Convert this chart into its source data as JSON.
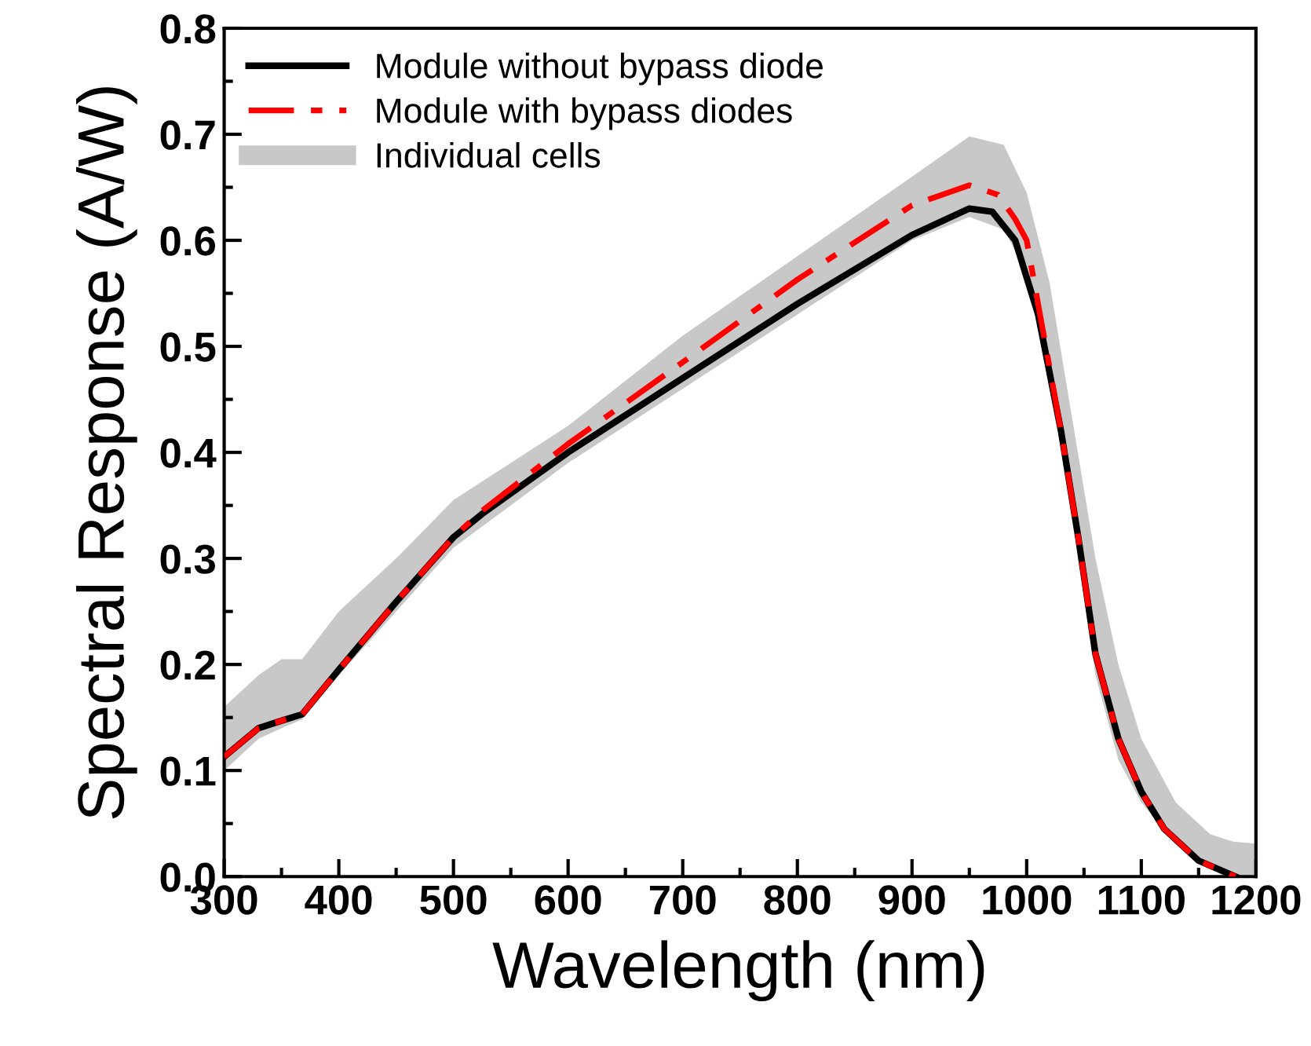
{
  "chart_data": {
    "type": "line",
    "xlabel": "Wavelength (nm)",
    "ylabel": "Spectral Response (A/W)",
    "xlim": [
      300,
      1200
    ],
    "xticks": [
      300,
      400,
      500,
      600,
      700,
      800,
      900,
      1000,
      1100,
      1200
    ],
    "ylim": [
      0.0,
      0.8
    ],
    "yticks": [
      {
        "value": 0.0,
        "label": "0.0"
      },
      {
        "value": 0.1,
        "label": "0.1"
      },
      {
        "value": 0.2,
        "label": "0.2"
      },
      {
        "value": 0.3,
        "label": "0.3"
      },
      {
        "value": 0.4,
        "label": "0.4"
      },
      {
        "value": 0.5,
        "label": "0.5"
      },
      {
        "value": 0.6,
        "label": "0.6"
      },
      {
        "value": 0.7,
        "label": "0.7"
      },
      {
        "value": 0.8,
        "label": "0.8"
      }
    ],
    "legend": "top left",
    "grid": false,
    "marker": "none",
    "series": [
      {
        "name": "Module without bypass diode",
        "color": "#000000",
        "line_style": "solid",
        "x": [
          300,
          330,
          350,
          368,
          400,
          450,
          500,
          525,
          600,
          700,
          800,
          900,
          950,
          970,
          990,
          1010,
          1030,
          1045,
          1060,
          1080,
          1100,
          1120,
          1150,
          1182
        ],
        "values": [
          0.113,
          0.14,
          0.147,
          0.153,
          0.195,
          0.259,
          0.32,
          0.342,
          0.4,
          0.47,
          0.54,
          0.605,
          0.63,
          0.627,
          0.6,
          0.53,
          0.42,
          0.32,
          0.21,
          0.13,
          0.08,
          0.045,
          0.015,
          0.0
        ]
      },
      {
        "name": "Module with bypass diodes",
        "color": "#ff0000",
        "line_style": "dashdot",
        "x": [
          300,
          330,
          350,
          368,
          400,
          450,
          500,
          525,
          600,
          700,
          800,
          900,
          950,
          975,
          990,
          1000,
          1010,
          1030,
          1045,
          1060,
          1080,
          1100,
          1120,
          1150,
          1182
        ],
        "values": [
          0.113,
          0.14,
          0.147,
          0.153,
          0.195,
          0.259,
          0.32,
          0.345,
          0.408,
          0.485,
          0.563,
          0.633,
          0.652,
          0.643,
          0.62,
          0.6,
          0.54,
          0.42,
          0.32,
          0.21,
          0.13,
          0.08,
          0.045,
          0.015,
          0.0
        ]
      },
      {
        "name": "Individual cells",
        "type": "area",
        "color": "#c8c8c8",
        "x": [
          300,
          330,
          350,
          368,
          400,
          450,
          500,
          600,
          700,
          800,
          900,
          950,
          980,
          1000,
          1020,
          1040,
          1060,
          1080,
          1100,
          1130,
          1160,
          1180,
          1200
        ],
        "values": [
          null,
          null,
          null,
          null,
          null,
          null,
          null,
          null,
          null,
          null,
          null,
          null,
          null,
          null,
          null,
          null,
          null,
          null,
          null,
          null,
          null,
          null,
          null
        ],
        "lower": [
          0.1,
          0.13,
          0.14,
          0.148,
          0.19,
          0.25,
          0.31,
          0.39,
          0.46,
          0.53,
          0.6,
          0.622,
          0.61,
          0.57,
          0.48,
          0.34,
          0.19,
          0.11,
          0.07,
          0.03,
          0.008,
          0.0,
          0.0
        ],
        "upper": [
          0.16,
          0.19,
          0.205,
          0.205,
          0.25,
          0.3,
          0.355,
          0.425,
          0.51,
          0.585,
          0.66,
          0.698,
          0.69,
          0.645,
          0.56,
          0.43,
          0.3,
          0.2,
          0.13,
          0.07,
          0.04,
          0.033,
          0.031
        ]
      }
    ]
  }
}
